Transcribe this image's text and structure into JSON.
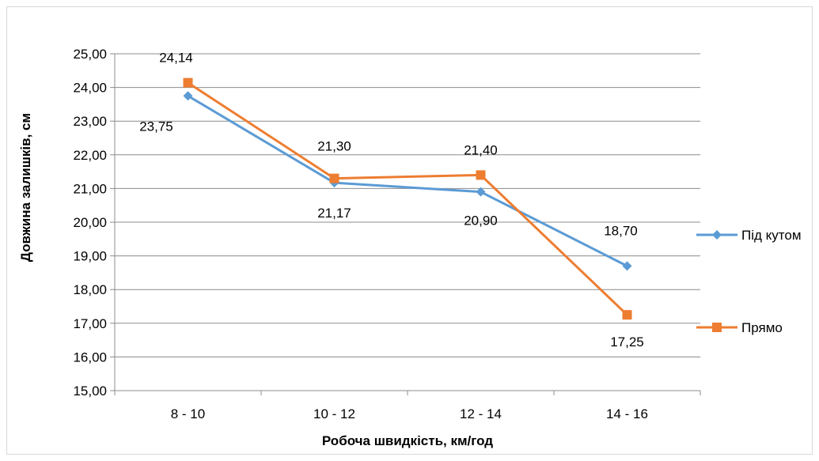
{
  "chart_data": {
    "type": "line",
    "categories": [
      "8 - 10",
      "10 - 12",
      "12 - 14",
      "14 - 16"
    ],
    "series": [
      {
        "name": "Під кутом",
        "values": [
          23.75,
          21.17,
          20.9,
          18.7
        ],
        "labels": [
          "23,75",
          "21,17",
          "20,90",
          "18,70"
        ],
        "color": "#5b9bd5",
        "marker": "diamond"
      },
      {
        "name": "Прямо",
        "values": [
          24.14,
          21.3,
          21.4,
          17.25
        ],
        "labels": [
          "24,14",
          "21,30",
          "21,40",
          "17,25"
        ],
        "color": "#ed7d31",
        "marker": "square"
      }
    ],
    "yticks": [
      "15,00",
      "16,00",
      "17,00",
      "18,00",
      "19,00",
      "20,00",
      "21,00",
      "22,00",
      "23,00",
      "24,00",
      "25,00"
    ],
    "ylim": [
      15,
      25
    ],
    "xlabel": "Робоча швидкість, км/год",
    "ylabel": "Довжина залишків, см",
    "grid": true,
    "legend_position": "right"
  }
}
